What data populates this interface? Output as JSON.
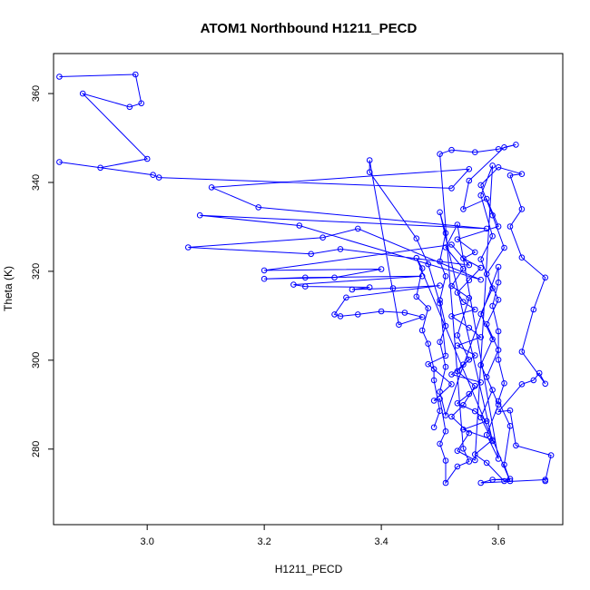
{
  "chart_data": {
    "type": "scatter",
    "title": "ATOM1 Northbound H1211_PECD",
    "xlabel": "H1211_PECD",
    "ylabel": "Theta (K)",
    "xlim": [
      2.84,
      3.71
    ],
    "ylim": [
      263,
      369
    ],
    "xticks": [
      3.0,
      3.2,
      3.4,
      3.6
    ],
    "yticks": [
      280,
      300,
      320,
      340,
      360
    ],
    "xtick_labels": [
      "3.0",
      "3.2",
      "3.4",
      "3.6"
    ],
    "ytick_labels": [
      "280",
      "300",
      "320",
      "340",
      "360"
    ],
    "color": "#0000ff",
    "connected": true,
    "grid": false,
    "points": [
      [
        2.85,
        363.8
      ],
      [
        2.98,
        364.3
      ],
      [
        2.99,
        357.8
      ],
      [
        2.97,
        357.0
      ],
      [
        2.89,
        360.0
      ],
      [
        3.0,
        345.3
      ],
      [
        2.92,
        343.3
      ],
      [
        2.85,
        344.6
      ],
      [
        3.01,
        341.7
      ],
      [
        3.02,
        341.1
      ],
      [
        3.52,
        338.7
      ],
      [
        3.55,
        343.0
      ],
      [
        3.11,
        338.9
      ],
      [
        3.19,
        334.4
      ],
      [
        3.58,
        329.6
      ],
      [
        3.09,
        332.6
      ],
      [
        3.26,
        330.3
      ],
      [
        3.57,
        318.1
      ],
      [
        3.36,
        329.6
      ],
      [
        3.3,
        327.6
      ],
      [
        3.07,
        325.4
      ],
      [
        3.28,
        323.9
      ],
      [
        3.33,
        325.0
      ],
      [
        3.55,
        321.4
      ],
      [
        3.52,
        326.0
      ],
      [
        3.2,
        320.2
      ],
      [
        3.4,
        320.5
      ],
      [
        3.32,
        318.6
      ],
      [
        3.2,
        318.3
      ],
      [
        3.27,
        318.6
      ],
      [
        3.47,
        318.9
      ],
      [
        3.25,
        317.0
      ],
      [
        3.27,
        316.6
      ],
      [
        3.38,
        316.4
      ],
      [
        3.35,
        315.9
      ],
      [
        3.42,
        316.2
      ],
      [
        3.5,
        316.8
      ],
      [
        3.34,
        314.1
      ],
      [
        3.32,
        310.3
      ],
      [
        3.33,
        309.9
      ],
      [
        3.36,
        310.3
      ],
      [
        3.4,
        311.0
      ],
      [
        3.44,
        310.7
      ],
      [
        3.47,
        309.7
      ],
      [
        3.43,
        308.0
      ],
      [
        3.38,
        345.0
      ],
      [
        3.38,
        342.3
      ],
      [
        3.46,
        327.4
      ],
      [
        3.48,
        321.6
      ],
      [
        3.5,
        312.8
      ],
      [
        3.51,
        301.0
      ],
      [
        3.48,
        299.1
      ],
      [
        3.52,
        294.6
      ],
      [
        3.49,
        290.9
      ],
      [
        3.5,
        291.3
      ],
      [
        3.51,
        284.0
      ],
      [
        3.5,
        281.2
      ],
      [
        3.51,
        277.4
      ],
      [
        3.51,
        272.4
      ],
      [
        3.53,
        276.1
      ],
      [
        3.55,
        277.2
      ],
      [
        3.54,
        280.1
      ],
      [
        3.5,
        346.4
      ],
      [
        3.52,
        347.3
      ],
      [
        3.56,
        346.8
      ],
      [
        3.6,
        347.5
      ],
      [
        3.63,
        348.5
      ],
      [
        3.61,
        347.9
      ],
      [
        3.55,
        340.4
      ],
      [
        3.54,
        334.0
      ],
      [
        3.58,
        336.3
      ],
      [
        3.6,
        330.1
      ],
      [
        3.53,
        327.2
      ],
      [
        3.56,
        324.3
      ],
      [
        3.54,
        322.9
      ],
      [
        3.57,
        320.8
      ],
      [
        3.55,
        318.0
      ],
      [
        3.53,
        315.2
      ],
      [
        3.54,
        313.1
      ],
      [
        3.56,
        311.4
      ],
      [
        3.52,
        309.9
      ],
      [
        3.55,
        307.3
      ],
      [
        3.57,
        305.2
      ],
      [
        3.53,
        303.3
      ],
      [
        3.56,
        301.1
      ],
      [
        3.54,
        299.0
      ],
      [
        3.52,
        296.8
      ],
      [
        3.57,
        295.0
      ],
      [
        3.55,
        292.4
      ],
      [
        3.53,
        290.3
      ],
      [
        3.56,
        288.5
      ],
      [
        3.58,
        286.3
      ],
      [
        3.54,
        284.4
      ],
      [
        3.59,
        282.1
      ],
      [
        3.56,
        278.8
      ],
      [
        3.58,
        276.9
      ],
      [
        3.61,
        272.8
      ],
      [
        3.62,
        273.3
      ],
      [
        3.59,
        273.1
      ],
      [
        3.57,
        272.4
      ],
      [
        3.68,
        273.1
      ],
      [
        3.68,
        272.8
      ],
      [
        3.69,
        278.6
      ],
      [
        3.63,
        280.8
      ],
      [
        3.62,
        288.7
      ],
      [
        3.6,
        288.4
      ],
      [
        3.64,
        294.6
      ],
      [
        3.66,
        295.5
      ],
      [
        3.67,
        297.1
      ],
      [
        3.68,
        294.7
      ],
      [
        3.64,
        301.9
      ],
      [
        3.66,
        311.4
      ],
      [
        3.68,
        318.6
      ],
      [
        3.64,
        323.1
      ],
      [
        3.62,
        330.1
      ],
      [
        3.64,
        334.0
      ],
      [
        3.62,
        341.6
      ],
      [
        3.64,
        341.9
      ],
      [
        3.6,
        343.4
      ],
      [
        3.57,
        339.4
      ],
      [
        3.59,
        332.6
      ],
      [
        3.61,
        325.3
      ],
      [
        3.58,
        319.4
      ],
      [
        3.6,
        313.6
      ],
      [
        3.58,
        308.1
      ],
      [
        3.6,
        302.3
      ],
      [
        3.58,
        296.2
      ],
      [
        3.6,
        290.0
      ],
      [
        3.58,
        283.2
      ],
      [
        3.6,
        277.8
      ],
      [
        3.53,
        330.5
      ],
      [
        3.51,
        325.4
      ],
      [
        3.54,
        320.6
      ],
      [
        3.52,
        316.7
      ],
      [
        3.55,
        314.0
      ],
      [
        3.53,
        305.6
      ],
      [
        3.55,
        300.1
      ],
      [
        3.53,
        297.5
      ],
      [
        3.56,
        294.2
      ],
      [
        3.54,
        289.9
      ],
      [
        3.52,
        287.3
      ],
      [
        3.55,
        283.6
      ],
      [
        3.53,
        279.6
      ],
      [
        3.56,
        277.5
      ],
      [
        3.59,
        343.8
      ],
      [
        3.57,
        337.1
      ],
      [
        3.59,
        327.9
      ],
      [
        3.57,
        322.7
      ],
      [
        3.59,
        316.2
      ],
      [
        3.57,
        310.4
      ],
      [
        3.59,
        304.7
      ],
      [
        3.57,
        298.9
      ],
      [
        3.59,
        293.3
      ],
      [
        3.57,
        287.1
      ],
      [
        3.59,
        281.8
      ],
      [
        3.5,
        333.3
      ],
      [
        3.51,
        328.6
      ],
      [
        3.5,
        322.2
      ],
      [
        3.51,
        318.9
      ],
      [
        3.5,
        313.5
      ],
      [
        3.51,
        307.7
      ],
      [
        3.5,
        304.1
      ],
      [
        3.51,
        298.5
      ],
      [
        3.5,
        292.9
      ],
      [
        3.51,
        287.6
      ],
      [
        3.6,
        321.0
      ],
      [
        3.6,
        317.5
      ],
      [
        3.59,
        312.2
      ],
      [
        3.6,
        306.5
      ],
      [
        3.6,
        300.1
      ],
      [
        3.61,
        294.8
      ],
      [
        3.6,
        290.8
      ],
      [
        3.62,
        285.2
      ],
      [
        3.61,
        276.5
      ],
      [
        3.62,
        272.8
      ],
      [
        3.46,
        323.0
      ],
      [
        3.47,
        320.7
      ],
      [
        3.46,
        314.3
      ],
      [
        3.48,
        311.7
      ],
      [
        3.47,
        306.7
      ],
      [
        3.48,
        303.7
      ],
      [
        3.49,
        298.0
      ],
      [
        3.49,
        295.5
      ],
      [
        3.5,
        288.6
      ],
      [
        3.49,
        284.9
      ]
    ]
  }
}
